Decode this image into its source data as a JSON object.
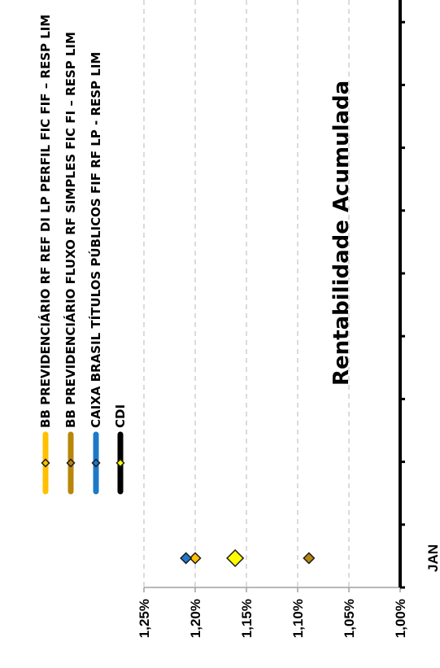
{
  "chart_data": {
    "type": "scatter",
    "title": "Rentabilidade Acumulada",
    "categories": [
      "JAN"
    ],
    "ylim": [
      0.01,
      0.0125
    ],
    "y_ticks": [
      "1,25%",
      "1,20%",
      "1,15%",
      "1,10%",
      "1,05%",
      "1,00%"
    ],
    "y_tick_values": [
      0.0125,
      0.012,
      0.0115,
      0.011,
      0.0105,
      0.01
    ],
    "grid": true,
    "legend_position": "top",
    "orientation": "rotated-90-clockwise",
    "series": [
      {
        "name": "BB PREVIDENCIÁRIO RF REF DI LP PERFIL FIC FIF – RESP LIM",
        "color": "#FFC000",
        "values": [
          0.012
        ]
      },
      {
        "name": "BB PREVIDENCIÁRIO FLUXO RF SIMPLES FIC FI – RESP LIM",
        "color": "#B8860B",
        "values": [
          0.01089
        ]
      },
      {
        "name": "CAIXA BRASIL TÍTULOS PÚBLICOS FIF RF LP - RESP LIM",
        "color": "#1F78C8",
        "values": [
          0.01209
        ]
      },
      {
        "name": "CDI",
        "color": "#FFFF00",
        "line_color": "#000000",
        "values": [
          0.01161
        ]
      }
    ]
  }
}
